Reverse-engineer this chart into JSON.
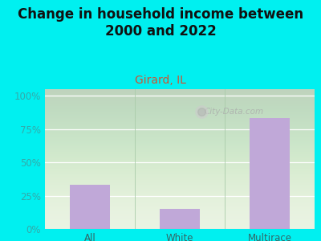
{
  "title": "Change in household income between\n2000 and 2022",
  "subtitle": "Girard, IL",
  "categories": [
    "All",
    "White",
    "Multirace"
  ],
  "values": [
    33,
    15,
    83
  ],
  "bar_color": "#c0a8d8",
  "background_color": "#00f0f0",
  "title_color": "#111111",
  "title_fontsize": 12,
  "subtitle_color": "#cc5533",
  "subtitle_fontsize": 10,
  "tick_color": "#33aaaa",
  "xlabel_color": "#336666",
  "ylabel_ticks": [
    0,
    25,
    50,
    75,
    100
  ],
  "ylabel_labels": [
    "0%",
    "25%",
    "50%",
    "75%",
    "100%"
  ],
  "ylim": [
    0,
    105
  ],
  "watermark": "City-Data.com",
  "plot_bg_color_top": "#e8f2e0",
  "plot_bg_color_bottom": "#f0f8e8"
}
